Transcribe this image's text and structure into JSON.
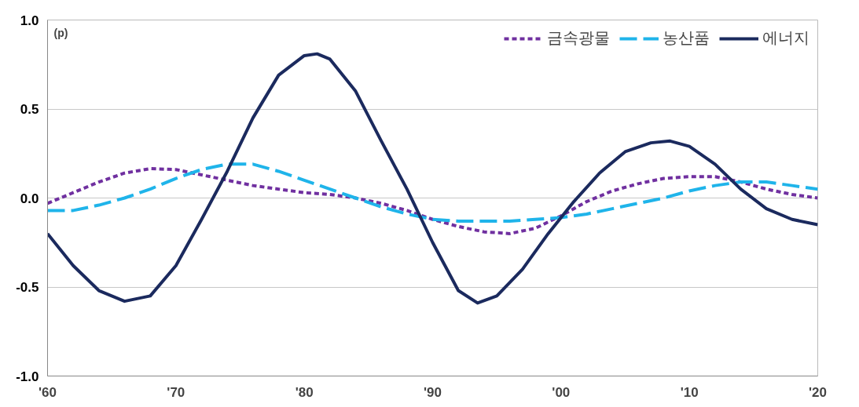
{
  "chart_data": {
    "type": "line",
    "annotations": [
      "(p)"
    ],
    "x": [
      1960,
      1962,
      1964,
      1966,
      1968,
      1970,
      1972,
      1974,
      1976,
      1978,
      1980,
      1982,
      1984,
      1986,
      1988,
      1990,
      1992,
      1994,
      1996,
      1998,
      2000,
      2002,
      2004,
      2006,
      2008,
      2010,
      2012,
      2014,
      2016,
      2018,
      2020
    ],
    "series": [
      {
        "name": "금속광물",
        "color": "#7030a0",
        "line_style": "dashed",
        "values": [
          -0.03,
          0.03,
          0.09,
          0.14,
          0.165,
          0.16,
          0.13,
          0.1,
          0.07,
          0.05,
          0.03,
          0.02,
          0.0,
          -0.03,
          -0.07,
          -0.12,
          -0.16,
          -0.19,
          -0.2,
          -0.17,
          -0.1,
          -0.02,
          0.04,
          0.08,
          0.11,
          0.12,
          0.12,
          0.09,
          0.05,
          0.02,
          0.0
        ]
      },
      {
        "name": "농산품",
        "color": "#1fb4ea",
        "line_style": "longdash",
        "values": [
          -0.07,
          -0.07,
          -0.04,
          0.0,
          0.05,
          0.11,
          0.16,
          0.19,
          0.19,
          0.15,
          0.1,
          0.05,
          0.0,
          -0.05,
          -0.09,
          -0.12,
          -0.13,
          -0.13,
          -0.13,
          -0.12,
          -0.11,
          -0.09,
          -0.06,
          -0.03,
          0.0,
          0.04,
          0.07,
          0.09,
          0.09,
          0.07,
          0.05
        ]
      },
      {
        "name": "에너지",
        "color": "#1b2a5e",
        "line_style": "solid",
        "x": [
          1960,
          1962,
          1964,
          1966,
          1968,
          1970,
          1972,
          1974,
          1976,
          1978,
          1980,
          1981,
          1982,
          1984,
          1986,
          1988,
          1990,
          1992,
          1993.5,
          1995,
          1997,
          1999,
          2001,
          2003,
          2005,
          2007,
          2008.5,
          2010,
          2012,
          2014,
          2016,
          2018,
          2020
        ],
        "values": [
          -0.2,
          -0.38,
          -0.52,
          -0.58,
          -0.55,
          -0.38,
          -0.12,
          0.15,
          0.45,
          0.69,
          0.8,
          0.81,
          0.78,
          0.6,
          0.32,
          0.05,
          -0.25,
          -0.52,
          -0.59,
          -0.55,
          -0.4,
          -0.2,
          -0.02,
          0.14,
          0.26,
          0.31,
          0.32,
          0.29,
          0.19,
          0.05,
          -0.06,
          -0.12,
          -0.15
        ]
      }
    ],
    "xlim": [
      1960,
      2020
    ],
    "xticks": [
      {
        "value": 1960,
        "label": "'60"
      },
      {
        "value": 1970,
        "label": "'70"
      },
      {
        "value": 1980,
        "label": "'80"
      },
      {
        "value": 1990,
        "label": "'90"
      },
      {
        "value": 2000,
        "label": "'00"
      },
      {
        "value": 2010,
        "label": "'10"
      },
      {
        "value": 2020,
        "label": "'20"
      }
    ],
    "ylim": [
      -1.0,
      1.0
    ],
    "yticks": [
      {
        "value": -1.0,
        "label": "-1.0"
      },
      {
        "value": -0.5,
        "label": "-0.5"
      },
      {
        "value": 0,
        "label": "0.0"
      },
      {
        "value": 0.5,
        "label": "0.5"
      },
      {
        "value": 1.0,
        "label": "1.0"
      }
    ],
    "grid": "y",
    "legend": "top right"
  }
}
